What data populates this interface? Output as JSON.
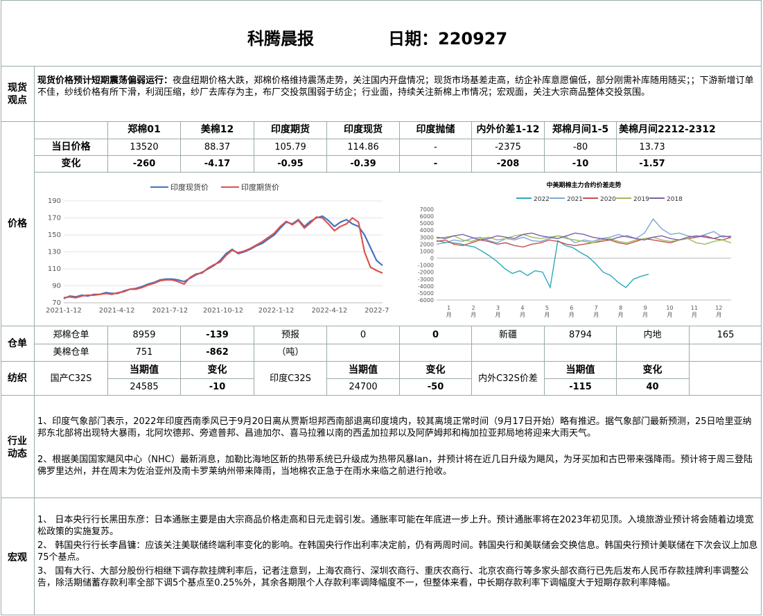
{
  "header": {
    "title": "科腾晨报",
    "date": "日期：220927"
  },
  "spot": {
    "label": "现货\n观点",
    "lead": "现货价格预计短期震荡偏弱运行：",
    "text": "夜盘纽期价格大跌，郑棉价格维持震荡走势，关注国内开盘情况；现货市场基差走高，纺企补库意愿偏低，部分刚需补库随用随买；；下游新增订单不佳，纱线价格有所下滑，利润压缩，纱厂去库存为主，布厂交投氛围弱于纺企；行业面，持续关注新棉上市情况；宏观面，关注大宗商品整体交投氛围。"
  },
  "price": {
    "label": "价格",
    "columns": [
      "郑棉01",
      "美棉12",
      "印度期货",
      "印度现货",
      "印度抛储",
      "内外价差1-12",
      "郑棉月间1-5",
      "美棉月间2212-2312"
    ],
    "rows": [
      {
        "name": "当日价格",
        "values": [
          "13520",
          "88.37",
          "105.79",
          "114.86",
          "-",
          "-2375",
          "-80",
          "13.73"
        ]
      },
      {
        "name": "变化",
        "values": [
          "-260",
          "-4.17",
          "-0.95",
          "-0.39",
          "-",
          "-208",
          "-10",
          "-1.57"
        ]
      }
    ]
  },
  "chart_data": [
    {
      "type": "line",
      "series": [
        {
          "name": "印度现货价",
          "color": "#4472c4",
          "values": [
            75,
            78,
            77,
            79,
            78,
            80,
            80,
            82,
            81,
            81,
            84,
            86,
            87,
            89,
            92,
            94,
            97,
            98,
            98,
            97,
            95,
            99,
            103,
            106,
            110,
            114,
            120,
            128,
            133,
            128,
            130,
            133,
            137,
            140,
            145,
            150,
            158,
            165,
            163,
            168,
            160,
            166,
            170,
            172,
            167,
            160,
            165,
            168,
            163,
            160,
            150,
            135,
            120,
            114
          ]
        },
        {
          "name": "印度期货价",
          "color": "#d9534f",
          "values": [
            76,
            77,
            76,
            78,
            79,
            79,
            80,
            81,
            80,
            82,
            83,
            86,
            86,
            88,
            91,
            93,
            96,
            97,
            97,
            95,
            92,
            100,
            104,
            105,
            111,
            115,
            118,
            126,
            132,
            129,
            131,
            134,
            138,
            142,
            147,
            152,
            160,
            166,
            162,
            167,
            158,
            164,
            171,
            170,
            163,
            155,
            160,
            163,
            170,
            165,
            130,
            112,
            108,
            105
          ]
        }
      ],
      "x_ticks": [
        "2021-1-12",
        "2021-4-12",
        "2021-7-12",
        "2021-10-12",
        "2022-1-12",
        "2022-4-12",
        "2022-7-12"
      ],
      "y_ticks": [
        "70",
        "90",
        "110",
        "130",
        "150",
        "170",
        "190"
      ],
      "ylim": [
        70,
        190
      ],
      "grid": true,
      "legend": "top"
    },
    {
      "type": "line",
      "title": "中美期棉主力合约价差走势",
      "series": [
        {
          "name": "2022",
          "color": "#2aa9b9",
          "values": [
            2500,
            2300,
            2200,
            2100,
            1800,
            1600,
            1000,
            300,
            -500,
            -1500,
            -2200,
            -1800,
            -2500,
            -1800,
            -2000,
            -4200,
            2500,
            1800,
            1500,
            800,
            200,
            -800,
            -2000,
            -2500,
            -3500,
            -4200,
            -3000,
            -2600,
            -2300
          ]
        },
        {
          "name": "2021",
          "color": "#7aa7d6",
          "values": [
            2000,
            2200,
            2600,
            2400,
            2800,
            3000,
            2500,
            2200,
            2800,
            2600,
            3000,
            2500,
            2400,
            2800,
            3200,
            3000,
            2200,
            2600,
            2400,
            2800,
            3000,
            3400,
            3000,
            2800,
            3600,
            5600,
            4200,
            3400,
            3600,
            3200,
            3000,
            3400,
            3800,
            3000,
            3200
          ]
        },
        {
          "name": "2020",
          "color": "#c0504d",
          "values": [
            2400,
            2600,
            2000,
            1800,
            2200,
            2600,
            2400,
            2000,
            2200,
            1800,
            1600,
            2000,
            2200,
            2600,
            2400,
            2000,
            1800,
            2000,
            2200,
            2400,
            2600,
            2200,
            2000,
            2400,
            2800,
            2600,
            2400,
            2200,
            2600,
            2800,
            3000,
            3200,
            2800,
            2600,
            3000
          ]
        },
        {
          "name": "2019",
          "color": "#9bbb59",
          "values": [
            2800,
            3000,
            3200,
            2600,
            2400,
            2800,
            3000,
            2600,
            2800,
            3200,
            3400,
            3000,
            2800,
            3000,
            3200,
            2800,
            2600,
            2400,
            2200,
            2600,
            2800,
            2400,
            2200,
            2600,
            2800,
            3000,
            2600,
            2400,
            2600,
            2800,
            2200,
            2000,
            2400,
            2600,
            2200
          ]
        },
        {
          "name": "2018",
          "color": "#7d5ea8",
          "values": [
            3000,
            2800,
            3200,
            3400,
            3000,
            2600,
            2800,
            3200,
            3000,
            2800,
            3400,
            3600,
            3200,
            3000,
            2800,
            3200,
            3600,
            3400,
            3000,
            2800,
            2600,
            3000,
            3200,
            2800,
            2600,
            3000,
            3200,
            2800,
            2600,
            3000,
            3200,
            3000,
            2800,
            3200,
            3000
          ]
        }
      ],
      "x_ticks": [
        "1\n月",
        "2\n月",
        "3\n月",
        "4\n月",
        "5\n月",
        "6\n月",
        "7\n月",
        "8\n月",
        "9\n月",
        "10\n月",
        "11\n月",
        "12\n月"
      ],
      "y_ticks": [
        "7000",
        "6000",
        "5000",
        "4000",
        "3000",
        "2000",
        "1000",
        "0",
        "-1000",
        "-2000",
        "-3000",
        "-4000",
        "-5000",
        "-6000"
      ],
      "ylim": [
        -6000,
        7000
      ],
      "legend": "top"
    }
  ],
  "warehouse": {
    "label": "仓单",
    "zz_label": "郑棉仓单",
    "zz_val": "8959",
    "zz_chg": "-139",
    "forecast_label": "预报",
    "forecast_val": "0",
    "forecast_chg": "0",
    "xinjiang_label": "新疆",
    "xinjiang_val": "8794",
    "inland_label": "内地",
    "inland_val": "165",
    "us_label": "美棉仓单",
    "us_val": "751",
    "us_chg": "-862",
    "unit": "（吨）"
  },
  "textile": {
    "label": "纺织",
    "cur_header": "当期值",
    "chg_header": "变化",
    "domestic_label": "国产C32S",
    "domestic_val": "24585",
    "domestic_chg": "-10",
    "india_label": "印度C32S",
    "india_val": "24700",
    "india_chg": "-50",
    "spread_label": "内外C32S价差",
    "spread_val": "-115",
    "spread_chg": "40"
  },
  "industry": {
    "label": "行业\n动态",
    "p1": "1、印度气象部门表示，2022年印度西南季风已于9月20日离从贾斯坦邦西南部退离印度境内，较其离境正常时间（9月17日开始）略有推迟。据气象部门最新预测，25日哈里亚纳邦东北部将出现特大暴雨，北阿坎德邦、旁遮普邦、昌迪加尔、喜马拉雅以南的西孟加拉邦以及阿萨姆邦和梅加拉亚邦局地将迎来大雨天气。",
    "p2": "2、根据美国国家飓风中心（NHC）最新消息，加勒比海地区新的热带系统已升级成为热带风暴Ian，并预计将在近几日升级为飓风，为牙买加和古巴带来强降雨。预计将于周三登陆佛罗里达州，并在周末为佐治亚州及南卡罗莱纳州带来降雨，当地棉农正急于在雨水来临之前进行抢收。"
  },
  "macro": {
    "label": "宏观",
    "p1": "1、 日本央行行长黑田东彦：日本通胀主要是由大宗商品价格走高和日元走弱引发。通胀率可能在年底进一步上升。预计通胀率将在2023年初见顶。入境旅游业预计将会随着边境宽松政策的实施复苏。",
    "p2": "2、 韩国央行行长李昌镛：应该关注美联储终端利率变化的影响。在韩国央行作出利率决定前，仍有两周时间。韩国央行和美联储会交换信息。韩国央行预计美联储在下次会议上加息75个基点。",
    "p3": "3、 国有大行、大部分股份行相继下调存款挂牌利率后，记者注意到，上海农商行、深圳农商行、重庆农商行、北京农商行等多家头部农商行已先后发布人民币存款挂牌利率调整公告，除活期储蓄存款利率全部下调5个基点至0.25%外，其余各期限个人存款利率调降幅度不一，但整体来看，中长期存款利率下调幅度大于短期存款利率降幅。"
  }
}
